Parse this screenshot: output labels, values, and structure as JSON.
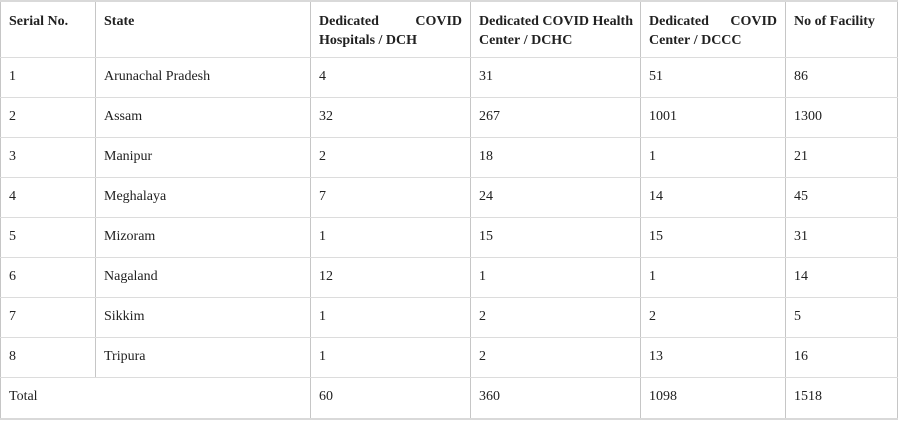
{
  "colors": {
    "background": "#ffffff",
    "text": "#212121",
    "border_vertical": "#c6c6c6",
    "border_horizontal": "#dcdcdc",
    "border_outer": "#d9d9d9"
  },
  "table": {
    "columns": {
      "serial_no": "Serial No.",
      "state": "State",
      "dch": "Dedicated COVID Hospitals / DCH",
      "dchc": "Dedicated COVID Health Center / DCHC",
      "dccc": "Dedicated COVID Center / DCCC",
      "facility": "No of Facility"
    },
    "rows": [
      {
        "serial": "1",
        "state": "Arunachal Pradesh",
        "dch": "4",
        "dchc": "31",
        "dccc": "51",
        "facility": "86"
      },
      {
        "serial": "2",
        "state": "Assam",
        "dch": "32",
        "dchc": "267",
        "dccc": "1001",
        "facility": "1300"
      },
      {
        "serial": "3",
        "state": "Manipur",
        "dch": "2",
        "dchc": "18",
        "dccc": "1",
        "facility": "21"
      },
      {
        "serial": "4",
        "state": "Meghalaya",
        "dch": "7",
        "dchc": "24",
        "dccc": "14",
        "facility": "45"
      },
      {
        "serial": "5",
        "state": "Mizoram",
        "dch": "1",
        "dchc": "15",
        "dccc": "15",
        "facility": "31"
      },
      {
        "serial": "6",
        "state": "Nagaland",
        "dch": "12",
        "dchc": "1",
        "dccc": "1",
        "facility": "14"
      },
      {
        "serial": "7",
        "state": "Sikkim",
        "dch": "1",
        "dchc": "2",
        "dccc": "2",
        "facility": "5"
      },
      {
        "serial": "8",
        "state": "Tripura",
        "dch": "1",
        "dchc": "2",
        "dccc": "13",
        "facility": "16"
      }
    ],
    "total": {
      "label": "Total",
      "dch": "60",
      "dchc": "360",
      "dccc": "1098",
      "facility": "1518"
    }
  },
  "chart_data": {
    "type": "table",
    "title": "",
    "columns": [
      "Serial No.",
      "State",
      "Dedicated COVID Hospitals / DCH",
      "Dedicated COVID Health Center / DCHC",
      "Dedicated COVID Center / DCCC",
      "No of Facility"
    ],
    "rows": [
      [
        "1",
        "Arunachal Pradesh",
        4,
        31,
        51,
        86
      ],
      [
        "2",
        "Assam",
        32,
        267,
        1001,
        1300
      ],
      [
        "3",
        "Manipur",
        2,
        18,
        1,
        21
      ],
      [
        "4",
        "Meghalaya",
        7,
        24,
        14,
        45
      ],
      [
        "5",
        "Mizoram",
        1,
        15,
        15,
        31
      ],
      [
        "6",
        "Nagaland",
        12,
        1,
        1,
        14
      ],
      [
        "7",
        "Sikkim",
        1,
        2,
        2,
        5
      ],
      [
        "8",
        "Tripura",
        1,
        2,
        13,
        16
      ],
      [
        "Total",
        "",
        60,
        360,
        1098,
        1518
      ]
    ]
  }
}
